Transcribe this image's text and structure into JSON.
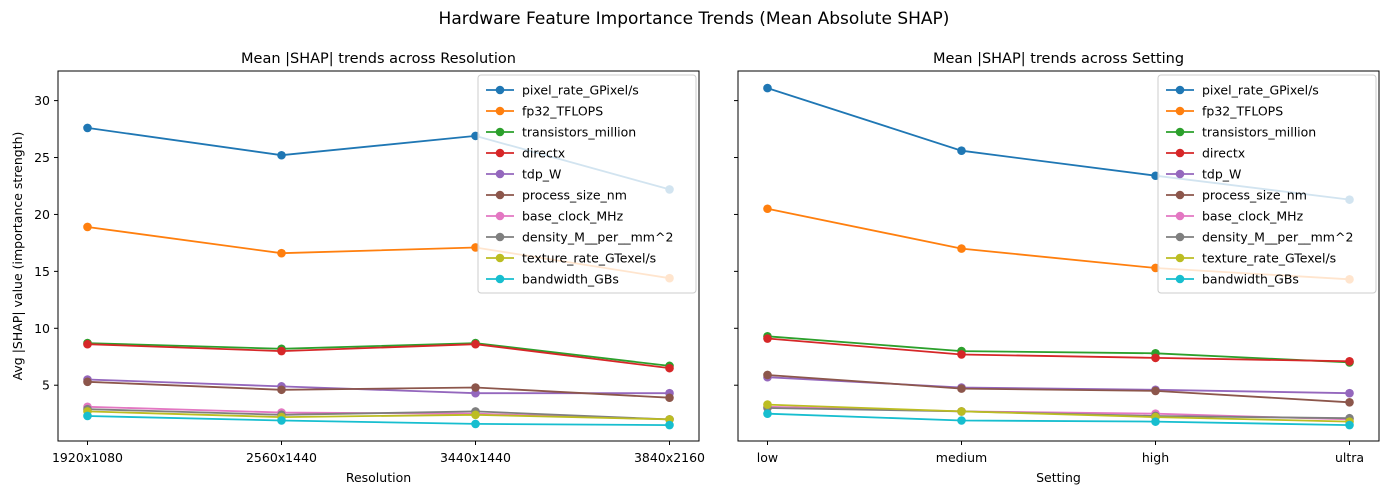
{
  "figure_title": "Hardware Feature Importance Trends (Mean Absolute SHAP)",
  "shared_ylabel": "Avg |SHAP| value (importance strength)",
  "colors": [
    "#1f77b4",
    "#ff7f0e",
    "#2ca02c",
    "#d62728",
    "#9467bd",
    "#8c564b",
    "#e377c2",
    "#7f7f7f",
    "#bcbd22",
    "#17becf"
  ],
  "chart_data": [
    {
      "type": "line",
      "title": "Mean |SHAP| trends across Resolution",
      "xlabel": "Resolution",
      "ylabel": "Avg |SHAP| value (importance strength)",
      "categories": [
        "1920x1080",
        "2560x1440",
        "3440x1440",
        "3840x2160"
      ],
      "ylim": [
        0.1,
        32.6
      ],
      "yticks": [
        5,
        10,
        15,
        20,
        25,
        30
      ],
      "grid": false,
      "legend": "upper right",
      "series": [
        {
          "name": "pixel_rate_GPixel/s",
          "values": [
            27.6,
            25.2,
            26.9,
            22.2
          ]
        },
        {
          "name": "fp32_TFLOPS",
          "values": [
            18.9,
            16.6,
            17.1,
            14.4
          ]
        },
        {
          "name": "transistors_million",
          "values": [
            8.7,
            8.2,
            8.7,
            6.7
          ]
        },
        {
          "name": "directx",
          "values": [
            8.6,
            8.0,
            8.6,
            6.5
          ]
        },
        {
          "name": "tdp_W",
          "values": [
            5.5,
            4.9,
            4.3,
            4.3
          ]
        },
        {
          "name": "process_size_nm",
          "values": [
            5.3,
            4.6,
            4.8,
            3.9
          ]
        },
        {
          "name": "base_clock_MHz",
          "values": [
            3.1,
            2.6,
            2.5,
            2.0
          ]
        },
        {
          "name": "density_M__per__mm^2",
          "values": [
            2.9,
            2.4,
            2.7,
            2.0
          ]
        },
        {
          "name": "texture_rate_GTexel/s",
          "values": [
            2.7,
            2.2,
            2.4,
            2.0
          ]
        },
        {
          "name": "bandwidth_GBs",
          "values": [
            2.3,
            1.9,
            1.6,
            1.5
          ]
        }
      ]
    },
    {
      "type": "line",
      "title": "Mean |SHAP| trends across Setting",
      "xlabel": "Setting",
      "categories": [
        "low",
        "medium",
        "high",
        "ultra"
      ],
      "ylim": [
        0.1,
        32.6
      ],
      "yticks": [
        5,
        10,
        15,
        20,
        25,
        30
      ],
      "grid": false,
      "legend": "upper right",
      "series": [
        {
          "name": "pixel_rate_GPixel/s",
          "values": [
            31.1,
            25.6,
            23.4,
            21.3
          ]
        },
        {
          "name": "fp32_TFLOPS",
          "values": [
            20.5,
            17.0,
            15.3,
            14.3
          ]
        },
        {
          "name": "transistors_million",
          "values": [
            9.3,
            8.0,
            7.8,
            7.0
          ]
        },
        {
          "name": "directx",
          "values": [
            9.1,
            7.7,
            7.4,
            7.1
          ]
        },
        {
          "name": "tdp_W",
          "values": [
            5.7,
            4.8,
            4.6,
            4.3
          ]
        },
        {
          "name": "process_size_nm",
          "values": [
            5.9,
            4.7,
            4.5,
            3.5
          ]
        },
        {
          "name": "base_clock_MHz",
          "values": [
            3.1,
            2.7,
            2.5,
            2.0
          ]
        },
        {
          "name": "density_M__per__mm^2",
          "values": [
            3.0,
            2.7,
            2.3,
            2.1
          ]
        },
        {
          "name": "texture_rate_GTexel/s",
          "values": [
            3.3,
            2.7,
            2.2,
            1.8
          ]
        },
        {
          "name": "bandwidth_GBs",
          "values": [
            2.5,
            1.9,
            1.8,
            1.5
          ]
        }
      ]
    }
  ]
}
